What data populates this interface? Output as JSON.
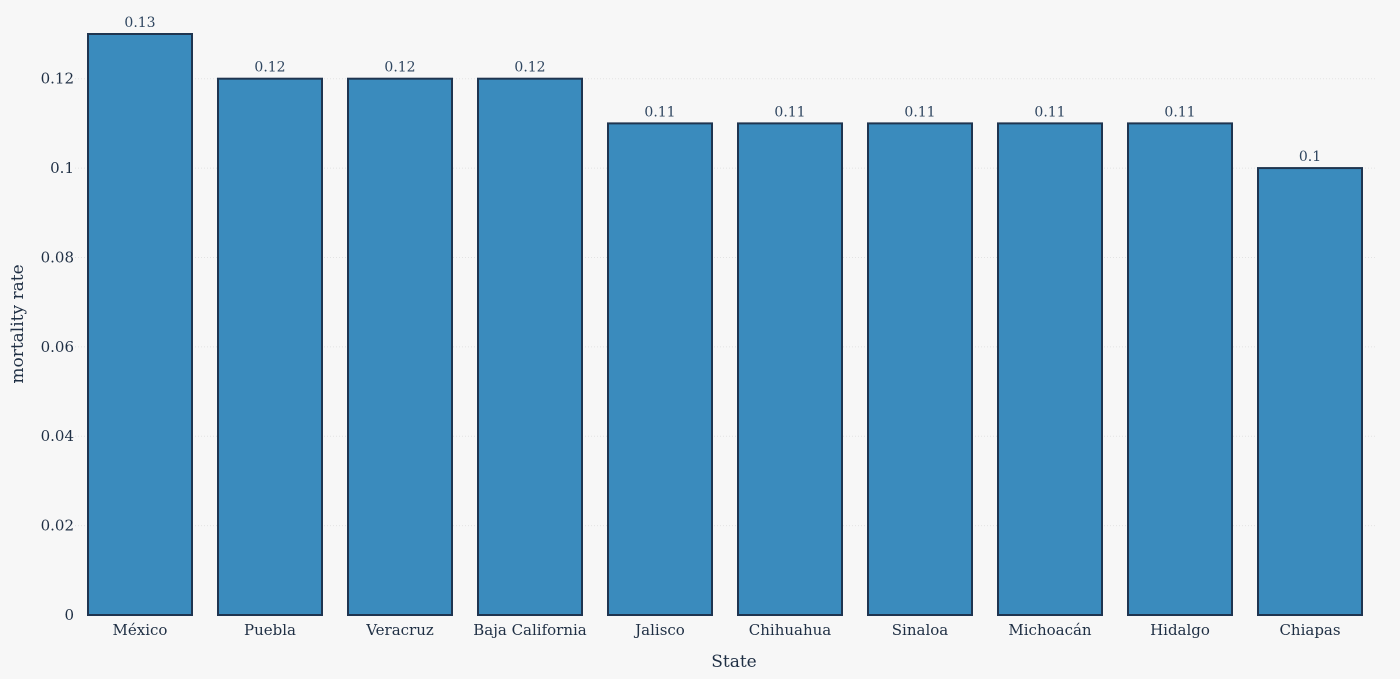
{
  "chart_data": {
    "type": "bar",
    "title": "",
    "xlabel": "State",
    "ylabel": "mortality rate",
    "categories": [
      "México",
      "Puebla",
      "Veracruz",
      "Baja California",
      "Jalisco",
      "Chihuahua",
      "Sinaloa",
      "Michoacán",
      "Hidalgo",
      "Chiapas"
    ],
    "values": [
      0.13,
      0.12,
      0.12,
      0.12,
      0.11,
      0.11,
      0.11,
      0.11,
      0.11,
      0.1
    ],
    "data_labels": [
      "0.13",
      "0.12",
      "0.12",
      "0.12",
      "0.11",
      "0.11",
      "0.11",
      "0.11",
      "0.11",
      "0.1"
    ],
    "ylim": [
      0,
      0.13
    ],
    "yticks": [
      0,
      0.02,
      0.04,
      0.06,
      0.08,
      0.1,
      0.12
    ],
    "ytick_labels": [
      "0",
      "0.02",
      "0.04",
      "0.06",
      "0.08",
      "0.1",
      "0.12"
    ],
    "grid": true,
    "legend": "none",
    "colors": {
      "bar_fill": "#3a8bbd",
      "bar_stroke": "#1f3550",
      "background": "#f7f7f7"
    }
  }
}
